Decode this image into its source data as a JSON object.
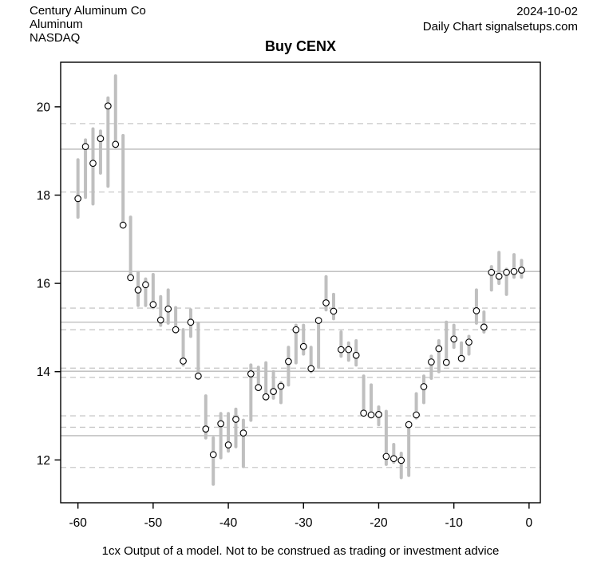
{
  "header": {
    "company": "Century Aluminum Co",
    "instrument": "Aluminum",
    "exchange": "NASDAQ",
    "date": "2024-10-02",
    "source": "Daily Chart signalsetups.com"
  },
  "title": "Buy CENX",
  "caption": "1cx Output of a model. Not to be construed as trading or investment advice",
  "chart_data": {
    "type": "bar",
    "subtype": "high-low-close-daily-bars",
    "title": "Buy CENX",
    "xlabel": "",
    "ylabel": "",
    "legend_position": "none",
    "x": [
      -60,
      -59,
      -58,
      -57,
      -56,
      -55,
      -54,
      -53,
      -52,
      -51,
      -50,
      -49,
      -48,
      -47,
      -46,
      -45,
      -44,
      -43,
      -42,
      -41,
      -40,
      -39,
      -38,
      -37,
      -36,
      -35,
      -34,
      -33,
      -32,
      -31,
      -30,
      -29,
      -28,
      -27,
      -26,
      -25,
      -24,
      -23,
      -22,
      -21,
      -20,
      -19,
      -18,
      -17,
      -16,
      -15,
      -14,
      -13,
      -12,
      -11,
      -10,
      -9,
      -8,
      -7,
      -6,
      -5,
      -4,
      -3,
      -2,
      -1
    ],
    "series": [
      {
        "name": "high",
        "values": [
          18.8,
          19.25,
          19.5,
          19.45,
          20.2,
          20.7,
          19.35,
          17.5,
          16.25,
          16.1,
          16.2,
          15.7,
          15.85,
          15.45,
          14.95,
          15.4,
          15.1,
          13.45,
          12.5,
          13.05,
          13.05,
          13.15,
          12.9,
          14.15,
          14.1,
          14.2,
          14.0,
          13.75,
          14.55,
          15.05,
          15.05,
          14.55,
          15.17,
          16.15,
          15.75,
          14.9,
          14.65,
          14.7,
          13.9,
          13.7,
          13.2,
          13.1,
          12.35,
          12.15,
          12.85,
          13.5,
          13.9,
          14.35,
          14.7,
          15.12,
          15.05,
          14.65,
          14.8,
          15.85,
          15.35,
          16.38,
          16.7,
          16.32,
          16.65,
          16.52
        ]
      },
      {
        "name": "low",
        "values": [
          17.5,
          17.95,
          17.8,
          18.5,
          18.2,
          19.1,
          17.3,
          16.1,
          15.5,
          15.5,
          15.45,
          15.05,
          15.1,
          14.9,
          14.15,
          14.8,
          13.85,
          12.5,
          11.45,
          12.05,
          12.2,
          12.3,
          11.85,
          12.9,
          13.6,
          13.38,
          13.4,
          13.3,
          13.7,
          14.2,
          14.4,
          14.0,
          14.1,
          15.4,
          15.2,
          14.35,
          14.26,
          14.15,
          13.05,
          13.0,
          12.8,
          11.9,
          11.95,
          11.6,
          11.65,
          12.95,
          13.3,
          13.85,
          14.0,
          14.17,
          14.55,
          14.28,
          14.4,
          15.1,
          14.9,
          15.85,
          16.0,
          15.75,
          16.14,
          16.14
        ]
      },
      {
        "name": "close",
        "values": [
          17.92,
          19.1,
          18.72,
          19.28,
          20.02,
          19.15,
          17.32,
          16.13,
          15.85,
          15.97,
          15.52,
          15.17,
          15.42,
          14.95,
          14.24,
          15.12,
          13.9,
          12.7,
          12.12,
          12.82,
          12.34,
          12.92,
          12.61,
          13.95,
          13.64,
          13.43,
          13.55,
          13.67,
          14.23,
          14.95,
          14.57,
          14.07,
          15.16,
          15.56,
          15.37,
          14.5,
          14.5,
          14.37,
          13.06,
          13.02,
          13.03,
          12.08,
          12.03,
          11.99,
          12.8,
          13.02,
          13.66,
          14.22,
          14.52,
          14.21,
          14.74,
          14.3,
          14.67,
          15.38,
          15.01,
          16.25,
          16.16,
          16.25,
          16.27,
          16.3
        ]
      }
    ],
    "x_ticks": [
      -60,
      -50,
      -40,
      -30,
      -20,
      -10,
      0
    ],
    "y_ticks": [
      12,
      14,
      16,
      18,
      20
    ],
    "xlim": [
      -62.3,
      1.5
    ],
    "ylim": [
      11.03,
      21.01
    ],
    "grid": {
      "solid_levels": [
        19.04,
        16.27,
        15.12,
        14.01,
        12.55
      ],
      "dashed_levels": [
        19.62,
        18.07,
        15.44,
        14.95,
        14.08,
        13.87,
        13.0,
        12.74,
        11.83
      ]
    },
    "colors": {
      "bar": "#bfbfbf",
      "grid_solid": "#b9b9b9",
      "grid_dashed": "#c9c9c9",
      "marker_fill": "#ffffff",
      "marker_stroke": "#000000",
      "axis": "#000000"
    }
  }
}
